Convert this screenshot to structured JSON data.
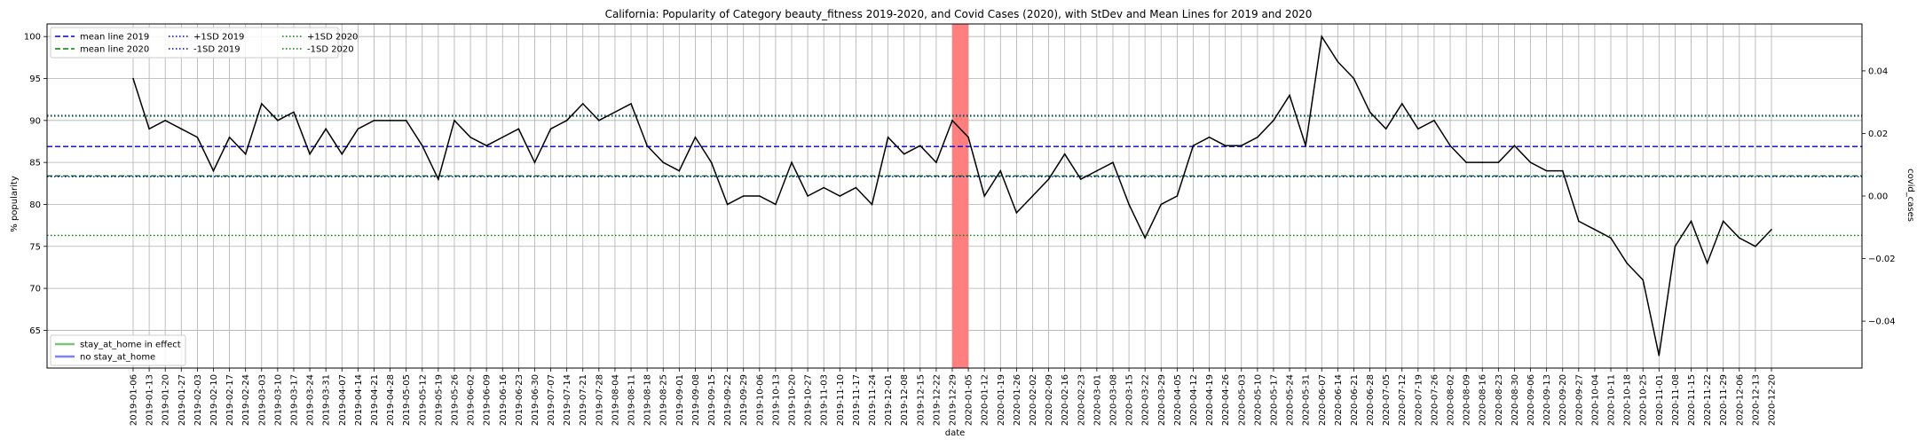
{
  "chart_data": {
    "type": "line",
    "title": "California: Popularity of Category beauty_fitness 2019-2020, and Covid Cases (2020), with StDev and Mean Lines for 2019 and 2020",
    "xlabel": "date",
    "ylabel": "% popularity",
    "y2label": "covid_cases",
    "ylim": [
      60.5,
      101.5
    ],
    "y2lim": [
      -0.055,
      0.055
    ],
    "yticks": [
      65,
      70,
      75,
      80,
      85,
      90,
      95,
      100
    ],
    "y2ticks": [
      "0.04",
      "0.02",
      "0.00",
      "−0.02",
      "−0.04"
    ],
    "y2tick_values": [
      0.04,
      0.02,
      0.0,
      -0.02,
      -0.04
    ],
    "grid": true,
    "categories": [
      "2019-01-06",
      "2019-01-13",
      "2019-01-20",
      "2019-01-27",
      "2019-02-03",
      "2019-02-10",
      "2019-02-17",
      "2019-02-24",
      "2019-03-03",
      "2019-03-10",
      "2019-03-17",
      "2019-03-24",
      "2019-03-31",
      "2019-04-07",
      "2019-04-14",
      "2019-04-21",
      "2019-04-28",
      "2019-05-05",
      "2019-05-12",
      "2019-05-19",
      "2019-05-26",
      "2019-06-02",
      "2019-06-09",
      "2019-06-16",
      "2019-06-23",
      "2019-06-30",
      "2019-07-07",
      "2019-07-14",
      "2019-07-21",
      "2019-07-28",
      "2019-08-04",
      "2019-08-11",
      "2019-08-18",
      "2019-08-25",
      "2019-09-01",
      "2019-09-08",
      "2019-09-15",
      "2019-09-22",
      "2019-09-29",
      "2019-10-06",
      "2019-10-13",
      "2019-10-20",
      "2019-10-27",
      "2019-11-03",
      "2019-11-10",
      "2019-11-17",
      "2019-11-24",
      "2019-12-01",
      "2019-12-08",
      "2019-12-15",
      "2019-12-22",
      "2019-12-29",
      "2020-01-05",
      "2020-01-12",
      "2020-01-19",
      "2020-01-26",
      "2020-02-02",
      "2020-02-09",
      "2020-02-16",
      "2020-02-23",
      "2020-03-01",
      "2020-03-08",
      "2020-03-15",
      "2020-03-22",
      "2020-03-29",
      "2020-04-05",
      "2020-04-12",
      "2020-04-19",
      "2020-04-26",
      "2020-05-03",
      "2020-05-10",
      "2020-05-17",
      "2020-05-24",
      "2020-05-31",
      "2020-06-07",
      "2020-06-14",
      "2020-06-21",
      "2020-06-28",
      "2020-07-05",
      "2020-07-12",
      "2020-07-19",
      "2020-07-26",
      "2020-08-02",
      "2020-08-09",
      "2020-08-16",
      "2020-08-23",
      "2020-08-30",
      "2020-09-06",
      "2020-09-13",
      "2020-09-20",
      "2020-09-27",
      "2020-10-04",
      "2020-10-11",
      "2020-10-18",
      "2020-10-25",
      "2020-11-01",
      "2020-11-08",
      "2020-11-15",
      "2020-11-22",
      "2020-11-29",
      "2020-12-06",
      "2020-12-13",
      "2020-12-20"
    ],
    "series": [
      {
        "name": "popularity",
        "color": "#000000",
        "values": [
          95,
          89,
          90,
          89,
          88,
          84,
          88,
          86,
          92,
          90,
          91,
          86,
          89,
          86,
          89,
          90,
          90,
          90,
          87,
          83,
          90,
          88,
          87,
          88,
          89,
          85,
          89,
          90,
          92,
          90,
          91,
          92,
          87,
          85,
          84,
          88,
          85,
          80,
          81,
          81,
          80,
          85,
          81,
          82,
          81,
          82,
          80,
          88,
          86,
          87,
          85,
          90,
          88,
          81,
          84,
          79,
          81,
          83,
          86,
          83,
          84,
          85,
          80,
          76,
          80,
          81,
          87,
          88,
          87,
          87,
          88,
          90,
          93,
          87,
          100,
          97,
          95,
          91,
          89,
          92,
          89,
          90,
          87,
          85,
          85,
          85,
          87,
          85,
          84,
          84,
          78,
          77,
          76,
          73,
          71,
          62,
          75,
          78,
          73,
          78,
          76,
          75,
          77
        ]
      }
    ],
    "reference_lines": [
      {
        "name": "mean line 2019",
        "value": 86.9,
        "color": "#0000cc",
        "style": "dashed"
      },
      {
        "name": "mean line 2020",
        "value": 83.4,
        "color": "#008000",
        "style": "dashed"
      },
      {
        "name": "+1SD 2019",
        "value": 90.6,
        "color": "#0000cc",
        "style": "dotted"
      },
      {
        "name": "-1SD 2019",
        "value": 83.3,
        "color": "#0000cc",
        "style": "dotted"
      },
      {
        "name": "+1SD 2020",
        "value": 90.5,
        "color": "#008000",
        "style": "dotted"
      },
      {
        "name": "-1SD 2020",
        "value": 76.3,
        "color": "#008000",
        "style": "dotted"
      }
    ],
    "highlight": {
      "from": "2019-12-29",
      "to": "2020-01-05",
      "color": "#ff7f7f"
    },
    "legend_top": {
      "position": "top-left",
      "entries": [
        {
          "label": "mean line 2019",
          "color": "#0000cc",
          "style": "dashed"
        },
        {
          "label": "mean line 2020",
          "color": "#008000",
          "style": "dashed"
        },
        {
          "label": "+1SD 2019",
          "color": "#0000cc",
          "style": "dotted"
        },
        {
          "label": "-1SD 2019",
          "color": "#0000cc",
          "style": "dotted"
        },
        {
          "label": "+1SD 2020",
          "color": "#008000",
          "style": "dotted"
        },
        {
          "label": "-1SD 2020",
          "color": "#008000",
          "style": "dotted"
        }
      ]
    },
    "legend_bottom": {
      "position": "bottom-left",
      "entries": [
        {
          "label": "stay_at_home in effect",
          "color": "#7fbf7f",
          "style": "solid"
        },
        {
          "label": "no stay_at_home",
          "color": "#7f7fff",
          "style": "solid"
        }
      ]
    }
  }
}
